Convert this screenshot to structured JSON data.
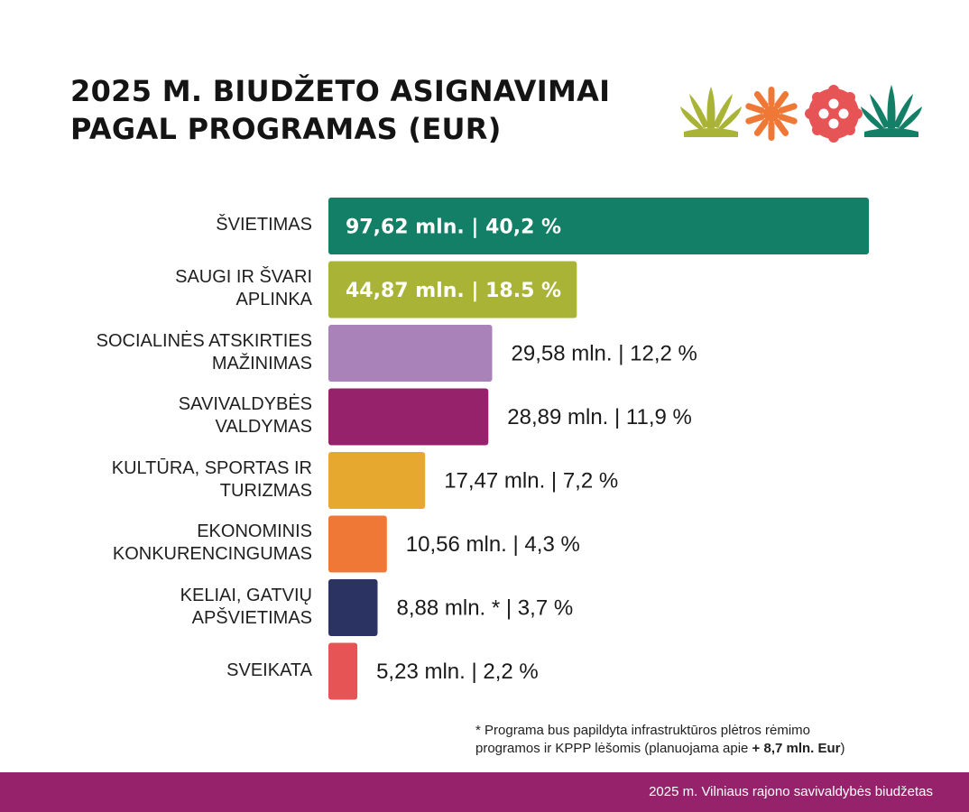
{
  "title": {
    "line1": "2025 M. BIUDŽETO ASIGNAVIMAI",
    "line2": "PAGAL PROGRAMAS (EUR)"
  },
  "chart_data": {
    "type": "bar",
    "orientation": "horizontal",
    "title": "2025 M. BIUDŽETO ASIGNAVIMAI PAGAL PROGRAMAS (EUR)",
    "unit": "mln. EUR",
    "xlim": [
      0,
      97.62
    ],
    "categories": [
      {
        "lines": [
          "ŠVIETIMAS"
        ],
        "value": 97.62,
        "value_label": "97,62 mln.",
        "share_label": "40,2 %",
        "color": "#137f66",
        "label_inside": true
      },
      {
        "lines": [
          "SAUGI IR ŠVARI",
          "APLINKA"
        ],
        "value": 44.87,
        "value_label": "44,87 mln.",
        "share_label": "18.5 %",
        "color": "#a9b436",
        "label_inside": true
      },
      {
        "lines": [
          "SOCIALINĖS ATSKIRTIES",
          "MAŽINIMAS"
        ],
        "value": 29.58,
        "value_label": "29,58 mln.",
        "share_label": "12,2 %",
        "color": "#a882b9",
        "label_inside": false
      },
      {
        "lines": [
          "SAVIVALDYBĖS",
          "VALDYMAS"
        ],
        "value": 28.89,
        "value_label": "28,89 mln.",
        "share_label": "11,9 %",
        "color": "#95226b",
        "label_inside": false
      },
      {
        "lines": [
          "KULTŪRA, SPORTAS IR",
          "TURIZMAS"
        ],
        "value": 17.47,
        "value_label": "17,47 mln.",
        "share_label": "7,2 %",
        "color": "#e7a82f",
        "label_inside": false
      },
      {
        "lines": [
          "EKONOMINIS",
          "KONKURENCINGUMAS"
        ],
        "value": 10.56,
        "value_label": "10,56 mln.",
        "share_label": "4,3 %",
        "color": "#ef7836",
        "label_inside": false
      },
      {
        "lines": [
          "KELIAI, GATVIŲ",
          "APŠVIETIMAS"
        ],
        "value": 8.88,
        "value_label": "8,88 mln. *",
        "share_label": "3,7 %",
        "color": "#2b3362",
        "label_inside": false
      },
      {
        "lines": [
          "SVEIKATA"
        ],
        "value": 5.23,
        "value_label": "5,23 mln.",
        "share_label": "2,2 %",
        "color": "#e65456",
        "label_inside": false
      }
    ],
    "separator": "|",
    "label_color_inside": "#ffffff",
    "label_color_outside": "#1a1a1a"
  },
  "footnote": {
    "line1": "* Programa bus papildyta infrastruktūros plėtros rėmimo",
    "line2_prefix": "programos ir KPPP lėšomis (planuojama apie ",
    "line2_bold": "+ 8,7 mln. Eur",
    "line2_suffix": ")"
  },
  "footer": {
    "text": "2025 m. Vilniaus rajono savivaldybės biudžetas",
    "color": "#95226b"
  },
  "decoration": {
    "icons": [
      "green-fan-icon",
      "orange-star-icon",
      "red-flower-icon",
      "teal-fan-icon"
    ],
    "colors": [
      "#a9b436",
      "#ef7836",
      "#e65456",
      "#137f66"
    ]
  }
}
